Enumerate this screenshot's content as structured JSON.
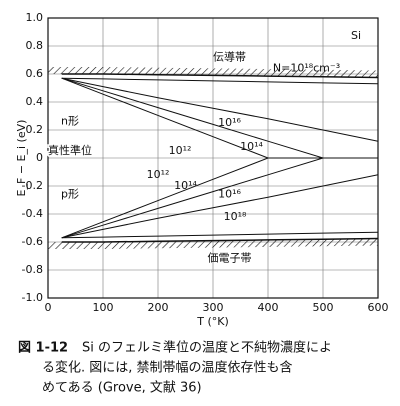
{
  "chart_data": {
    "type": "line",
    "x": [
      25,
      100,
      200,
      300,
      400,
      500,
      600
    ],
    "series": [
      {
        "name": "N=10¹⁸cm⁻³",
        "color": "#111",
        "values": [
          0.57,
          0.565,
          0.558,
          0.551,
          0.544,
          0.537,
          0.53
        ]
      },
      {
        "name": "10¹⁶",
        "color": "#111",
        "values": [
          0.57,
          0.51,
          0.43,
          0.355,
          0.28,
          0.2,
          0.12
        ]
      },
      {
        "name": "10¹⁴",
        "color": "#111",
        "values": [
          0.57,
          0.48,
          0.36,
          0.24,
          0.12,
          0,
          0
        ]
      },
      {
        "name": "10¹²",
        "color": "#111",
        "values": [
          0.57,
          0.456,
          0.304,
          0.152,
          0,
          0,
          0
        ]
      },
      {
        "name": "10¹²",
        "color": "#111",
        "values": [
          -0.57,
          -0.456,
          -0.304,
          -0.152,
          0,
          0,
          0
        ]
      },
      {
        "name": "10¹⁴",
        "color": "#111",
        "values": [
          -0.57,
          -0.48,
          -0.36,
          -0.24,
          -0.12,
          0,
          0
        ]
      },
      {
        "name": "10¹⁶",
        "color": "#111",
        "values": [
          -0.57,
          -0.51,
          -0.43,
          -0.355,
          -0.28,
          -0.2,
          -0.12
        ]
      },
      {
        "name": "10¹⁸",
        "color": "#111",
        "values": [
          -0.57,
          -0.565,
          -0.558,
          -0.551,
          -0.544,
          -0.537,
          -0.53
        ]
      }
    ],
    "bands": [
      {
        "label": "伝導帯",
        "values": [
          0.6,
          0.6,
          0.595,
          0.59,
          0.585,
          0.58,
          0.575
        ]
      },
      {
        "label": "価電子帯",
        "values": [
          -0.6,
          -0.6,
          -0.595,
          -0.59,
          -0.585,
          -0.58,
          -0.575
        ]
      }
    ],
    "annotations": {
      "material": "Si",
      "n_type": "n形",
      "intrinsic": "真性準位",
      "p_type": "p形"
    },
    "xlabel": "T (°K)",
    "ylabel": "E_F − E_i (eV)",
    "xlim": [
      0,
      600
    ],
    "xticks": [
      0,
      100,
      200,
      300,
      400,
      500,
      600
    ],
    "ylim": [
      -1,
      1
    ],
    "yticks": [
      {
        "value": -1,
        "label": "-1.0"
      },
      -0.8,
      -0.6,
      -0.4,
      -0.2,
      0,
      0.2,
      0.4,
      0.6,
      0.8,
      {
        "value": 1,
        "label": "1.0"
      }
    ],
    "grid": true
  },
  "caption": {
    "label": "図 1-12",
    "lines": [
      "Si のフェルミ準位の温度と不純物濃度によ",
      "る変化. 図には, 禁制帯幅の温度依存性も含",
      "めてある (Grove, 文献 36)"
    ]
  }
}
